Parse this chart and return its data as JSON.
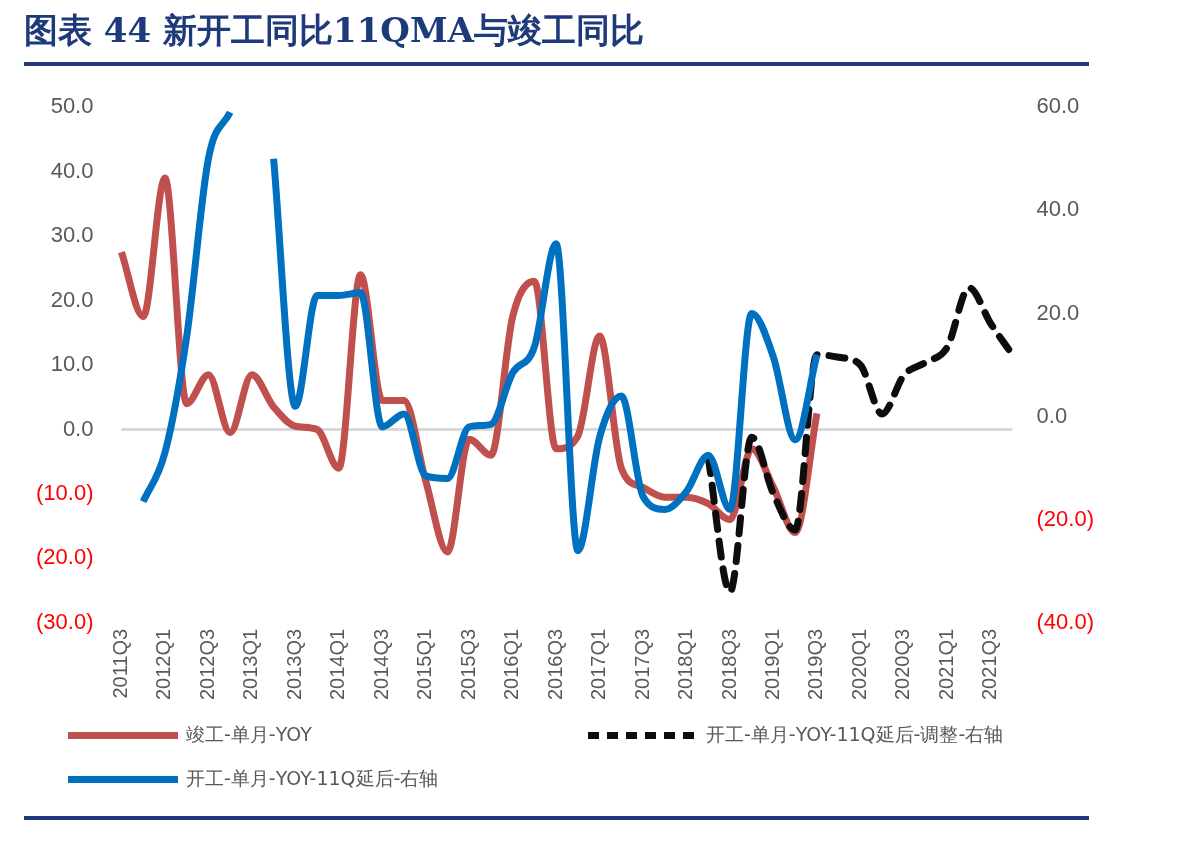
{
  "chart_data": {
    "type": "line",
    "title": "图表 44 新开工同比11QMA与竣工同比",
    "categories": [
      "2011Q3",
      null,
      "2012Q1",
      null,
      "2012Q3",
      null,
      "2013Q1",
      null,
      "2013Q3",
      null,
      "2014Q1",
      null,
      "2014Q3",
      null,
      "2015Q1",
      null,
      "2015Q3",
      null,
      "2016Q1",
      null,
      "2016Q3",
      null,
      "2017Q1",
      null,
      "2017Q3",
      null,
      "2018Q1",
      null,
      "2018Q3",
      null,
      "2019Q1",
      null,
      "2019Q3",
      null,
      "2020Q1",
      null,
      "2020Q3",
      null,
      "2021Q1",
      null,
      "2021Q3",
      null
    ],
    "series": [
      {
        "name": "竣工-单月-YOY",
        "color": "#c0504d",
        "values": [
          27.5,
          17.5,
          39,
          4,
          8.5,
          -0.5,
          8.5,
          3.5,
          0.5,
          0,
          -6,
          24,
          4.5,
          4.5,
          -8,
          -19,
          -1.5,
          -4,
          17.5,
          23,
          -3,
          -1,
          14.5,
          -6,
          -9,
          -10.5,
          -10.5,
          -11.5,
          -14,
          -3,
          -9,
          -16,
          2.5,
          null,
          null,
          null,
          null,
          null,
          null,
          null,
          null,
          null
        ]
      },
      {
        "name": "开工-单月-YOY-11Q延后-调整-右轴",
        "color": "#0d0d0d",
        "axis": "y2",
        "line_style": "dashed",
        "values": [
          null,
          null,
          null,
          null,
          null,
          null,
          null,
          null,
          null,
          null,
          null,
          null,
          null,
          null,
          null,
          null,
          null,
          null,
          null,
          null,
          null,
          null,
          null,
          null,
          null,
          null,
          null,
          -8,
          -34,
          -4,
          -15,
          -22,
          12,
          11.5,
          10,
          0.5,
          8,
          10.5,
          13.5,
          25,
          18,
          12
        ]
      },
      {
        "name": "开工-单月-YOY-11Q延后-右轴",
        "color": "#0070c0",
        "axis": "y2",
        "values": [
          null,
          -16.5,
          -7,
          15.5,
          50,
          59,
          null,
          50,
          2,
          23.5,
          23.5,
          24,
          -2,
          0.5,
          -11.5,
          -12,
          -2,
          -1.5,
          8.5,
          13.5,
          33.5,
          -26,
          -4,
          4,
          -15.5,
          -18,
          -14.5,
          -7.5,
          -18,
          20,
          11.5,
          -4.5,
          12,
          null,
          null,
          null,
          null,
          null,
          null,
          null,
          null,
          null
        ]
      }
    ],
    "ylim": [
      -30,
      50
    ],
    "yticks": [
      {
        "value": 50,
        "label": "50.0"
      },
      {
        "value": 40,
        "label": "40.0"
      },
      {
        "value": 30,
        "label": "30.0"
      },
      {
        "value": 20,
        "label": "20.0"
      },
      {
        "value": 10,
        "label": "10.0"
      },
      {
        "value": 0,
        "label": "0.0"
      },
      {
        "value": -10,
        "label": "(10.0)"
      },
      {
        "value": -20,
        "label": "(20.0)"
      },
      {
        "value": -30,
        "label": "(30.0)"
      }
    ],
    "y2lim": [
      -40,
      60
    ],
    "y2ticks": [
      {
        "value": 60,
        "label": "60.0"
      },
      {
        "value": 40,
        "label": "40.0"
      },
      {
        "value": 20,
        "label": "20.0"
      },
      {
        "value": 0,
        "label": "0.0"
      },
      {
        "value": -20,
        "label": "(20.0)"
      },
      {
        "value": -40,
        "label": "(40.0)"
      }
    ],
    "grid": false,
    "ref_lines": [
      {
        "axis": "y",
        "value": 0,
        "color": "#d9d9d9"
      }
    ],
    "legend": "bottom",
    "marker": "none",
    "line_style": "solid"
  }
}
